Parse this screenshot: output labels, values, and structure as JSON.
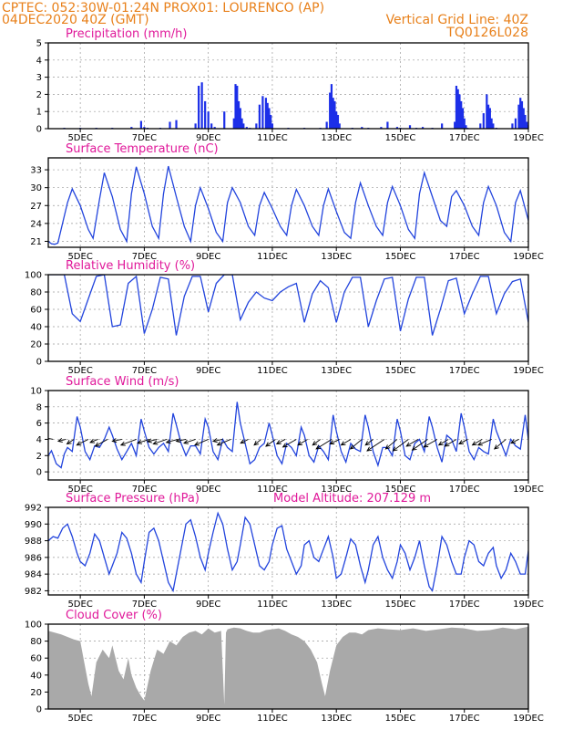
{
  "header": {
    "left_line1": "CPTEC:   052:30W-01:24N   PROX01: LOURENCO (AP)",
    "left_line2": "04DEC2020  40Z  (GMT)",
    "right_line2": "Vertical  Grid  Line: 40Z",
    "right_line3": "TQ0126L028"
  },
  "x_axis": {
    "start_day": 4,
    "end_day": 19,
    "tick_labels": [
      "5DEC",
      "7DEC",
      "9DEC",
      "11DEC",
      "13DEC",
      "15DEC",
      "17DEC",
      "19DEC"
    ],
    "tick_days": [
      5,
      7,
      9,
      11,
      13,
      15,
      17,
      19
    ]
  },
  "colors": {
    "series": "#2244dd",
    "title": "#e0199a",
    "header": "#e8801a",
    "cloud": "#a9a9a9"
  },
  "chart_data": [
    {
      "id": "precip",
      "type": "bar",
      "title": "Precipitation (mm/h)",
      "ylim": [
        0,
        5
      ],
      "yticks": [
        0,
        1,
        2,
        3,
        4,
        5
      ],
      "grid": true,
      "x_unit": "day of December 2020",
      "x": [
        4.0,
        4.5,
        5.0,
        5.5,
        6.0,
        6.6,
        6.9,
        7.0,
        7.1,
        7.5,
        7.8,
        8.0,
        8.6,
        8.7,
        8.8,
        8.9,
        9.0,
        9.1,
        9.2,
        9.5,
        9.8,
        9.85,
        9.9,
        9.95,
        10.0,
        10.05,
        10.1,
        10.2,
        10.3,
        10.5,
        10.6,
        10.7,
        10.8,
        10.85,
        10.9,
        10.95,
        11.0,
        11.5,
        12.0,
        12.5,
        12.7,
        12.8,
        12.85,
        12.9,
        12.95,
        13.0,
        13.05,
        13.1,
        13.5,
        13.8,
        14.0,
        14.4,
        14.6,
        14.9,
        15.0,
        15.3,
        15.5,
        15.7,
        16.0,
        16.3,
        16.7,
        16.75,
        16.8,
        16.85,
        16.9,
        16.95,
        17.0,
        17.05,
        17.1,
        17.5,
        17.6,
        17.7,
        17.75,
        17.8,
        17.85,
        17.9,
        18.0,
        18.5,
        18.6,
        18.7,
        18.75,
        18.8,
        18.85,
        18.9,
        18.95,
        19.0
      ],
      "values": [
        0.0,
        0.05,
        0.05,
        0.05,
        0.05,
        0.1,
        0.45,
        0.1,
        0.05,
        0.05,
        0.4,
        0.5,
        0.3,
        2.5,
        2.7,
        1.6,
        1.0,
        0.3,
        0.1,
        1.0,
        0.6,
        2.6,
        2.5,
        1.6,
        1.2,
        0.6,
        0.3,
        0.1,
        0.05,
        0.3,
        1.4,
        1.9,
        1.8,
        1.5,
        1.2,
        0.8,
        0.3,
        0.05,
        0.05,
        0.05,
        0.4,
        2.1,
        2.6,
        1.8,
        1.6,
        1.0,
        0.8,
        0.3,
        0.05,
        0.1,
        0.05,
        0.1,
        0.4,
        0.1,
        0.05,
        0.2,
        0.05,
        0.1,
        0.05,
        0.3,
        0.4,
        2.5,
        2.3,
        2.0,
        1.6,
        1.2,
        0.6,
        0.2,
        0.05,
        0.3,
        0.9,
        2.0,
        1.4,
        1.2,
        0.6,
        0.3,
        0.05,
        0.3,
        0.6,
        1.4,
        1.8,
        1.6,
        1.2,
        0.8,
        0.4,
        0.2
      ]
    },
    {
      "id": "temperature",
      "type": "line",
      "title": "Surface Temperature (nC)",
      "ylim": [
        20,
        35
      ],
      "yticks": [
        21,
        24,
        27,
        30,
        33
      ],
      "grid": true,
      "x_unit": "day of December 2020",
      "x": [
        4.0,
        4.1,
        4.2,
        4.3,
        4.6,
        4.75,
        5.0,
        5.25,
        5.4,
        5.6,
        5.75,
        6.0,
        6.25,
        6.45,
        6.6,
        6.75,
        7.0,
        7.25,
        7.45,
        7.6,
        7.75,
        8.0,
        8.25,
        8.45,
        8.6,
        8.75,
        9.0,
        9.25,
        9.45,
        9.6,
        9.75,
        10.0,
        10.25,
        10.45,
        10.6,
        10.75,
        11.0,
        11.25,
        11.45,
        11.6,
        11.75,
        12.0,
        12.25,
        12.45,
        12.6,
        12.75,
        13.0,
        13.25,
        13.45,
        13.6,
        13.75,
        14.0,
        14.25,
        14.45,
        14.6,
        14.75,
        15.0,
        15.25,
        15.45,
        15.6,
        15.75,
        16.0,
        16.25,
        16.45,
        16.6,
        16.75,
        17.0,
        17.25,
        17.45,
        17.6,
        17.75,
        18.0,
        18.25,
        18.45,
        18.6,
        18.75,
        19.0
      ],
      "values": [
        21.0,
        20.6,
        20.5,
        20.7,
        27.5,
        29.8,
        27.0,
        23.0,
        21.5,
        28.0,
        32.5,
        28.5,
        23.0,
        21.0,
        29.0,
        33.5,
        29.0,
        23.5,
        21.5,
        29.0,
        33.6,
        28.5,
        23.5,
        21.0,
        27.0,
        30.0,
        26.5,
        22.5,
        21.0,
        27.5,
        30.0,
        27.5,
        23.5,
        22.0,
        27.0,
        29.2,
        26.5,
        23.5,
        22.0,
        27.0,
        29.7,
        27.0,
        23.5,
        22.0,
        27.0,
        29.8,
        26.0,
        22.5,
        21.5,
        27.5,
        30.8,
        27.0,
        23.5,
        22.0,
        27.5,
        30.2,
        27.0,
        23.0,
        21.5,
        29.0,
        32.5,
        28.5,
        24.5,
        23.5,
        28.5,
        29.5,
        27.0,
        23.5,
        22.0,
        27.5,
        30.2,
        27.0,
        22.5,
        21.0,
        27.5,
        29.5,
        24.5
      ]
    },
    {
      "id": "humidity",
      "type": "line",
      "title": "Relative Humidity (%)",
      "ylim": [
        0,
        100
      ],
      "yticks": [
        0,
        20,
        40,
        60,
        80,
        100
      ],
      "grid": true,
      "x_unit": "day of December 2020",
      "x": [
        4.0,
        4.3,
        4.5,
        4.75,
        5.0,
        5.25,
        5.5,
        5.75,
        6.0,
        6.25,
        6.5,
        6.75,
        7.0,
        7.25,
        7.5,
        7.75,
        8.0,
        8.25,
        8.5,
        8.75,
        9.0,
        9.25,
        9.5,
        9.75,
        10.0,
        10.25,
        10.5,
        10.75,
        11.0,
        11.25,
        11.5,
        11.75,
        12.0,
        12.25,
        12.5,
        12.75,
        13.0,
        13.25,
        13.5,
        13.75,
        14.0,
        14.25,
        14.5,
        14.75,
        15.0,
        15.25,
        15.5,
        15.75,
        16.0,
        16.25,
        16.5,
        16.75,
        17.0,
        17.25,
        17.5,
        17.75,
        18.0,
        18.25,
        18.5,
        18.75,
        19.0
      ],
      "values": [
        100,
        100,
        100,
        55,
        46,
        72,
        98,
        100,
        40,
        42,
        90,
        98,
        32,
        60,
        97,
        95,
        30,
        75,
        98,
        98,
        57,
        90,
        100,
        100,
        48,
        68,
        80,
        73,
        70,
        80,
        86,
        90,
        45,
        78,
        93,
        85,
        45,
        80,
        97,
        97,
        40,
        70,
        95,
        97,
        35,
        72,
        97,
        97,
        30,
        60,
        93,
        96,
        55,
        78,
        98,
        98,
        55,
        78,
        92,
        95,
        45
      ]
    },
    {
      "id": "wind",
      "type": "line",
      "title": "Surface Wind (m/s)",
      "ylim": [
        -1,
        10
      ],
      "yticks": [
        0,
        2,
        4,
        6,
        8,
        10
      ],
      "grid": true,
      "x_unit": "day of December 2020",
      "x": [
        4.0,
        4.1,
        4.25,
        4.4,
        4.5,
        4.6,
        4.75,
        4.9,
        5.0,
        5.15,
        5.3,
        5.45,
        5.6,
        5.75,
        5.9,
        6.0,
        6.15,
        6.3,
        6.45,
        6.6,
        6.75,
        6.9,
        7.0,
        7.15,
        7.3,
        7.45,
        7.6,
        7.75,
        7.9,
        8.0,
        8.15,
        8.3,
        8.45,
        8.6,
        8.75,
        8.9,
        9.0,
        9.15,
        9.3,
        9.45,
        9.6,
        9.75,
        9.9,
        10.0,
        10.15,
        10.3,
        10.45,
        10.6,
        10.75,
        10.9,
        11.0,
        11.15,
        11.3,
        11.45,
        11.6,
        11.75,
        11.9,
        12.0,
        12.15,
        12.3,
        12.45,
        12.6,
        12.75,
        12.9,
        13.0,
        13.15,
        13.3,
        13.45,
        13.6,
        13.75,
        13.9,
        14.0,
        14.15,
        14.3,
        14.45,
        14.6,
        14.75,
        14.9,
        15.0,
        15.15,
        15.3,
        15.45,
        15.6,
        15.75,
        15.9,
        16.0,
        16.15,
        16.3,
        16.45,
        16.6,
        16.75,
        16.9,
        17.0,
        17.15,
        17.3,
        17.45,
        17.6,
        17.75,
        17.9,
        18.0,
        18.15,
        18.3,
        18.45,
        18.6,
        18.75,
        18.9,
        19.0
      ],
      "values": [
        2.0,
        2.6,
        1.0,
        0.5,
        2.2,
        3.0,
        2.5,
        6.8,
        5.5,
        2.5,
        1.5,
        3.2,
        3.0,
        4.0,
        5.5,
        4.5,
        2.8,
        1.5,
        2.5,
        3.5,
        2.0,
        6.5,
        5.0,
        3.0,
        2.2,
        3.0,
        3.5,
        2.5,
        7.2,
        5.8,
        3.5,
        2.0,
        3.2,
        3.2,
        2.2,
        6.5,
        5.5,
        2.5,
        1.5,
        4.0,
        3.0,
        2.5,
        8.6,
        6.0,
        3.5,
        1.0,
        1.5,
        3.0,
        3.5,
        6.0,
        4.5,
        2.0,
        1.0,
        3.5,
        3.0,
        2.0,
        5.5,
        4.5,
        2.0,
        1.2,
        3.2,
        2.5,
        1.5,
        7.0,
        5.0,
        2.5,
        1.2,
        3.5,
        2.8,
        2.5,
        7.0,
        5.5,
        2.5,
        0.8,
        3.0,
        3.0,
        2.0,
        6.5,
        5.0,
        2.0,
        1.5,
        3.5,
        4.0,
        2.5,
        6.8,
        5.5,
        3.0,
        1.2,
        4.5,
        4.0,
        2.5,
        7.2,
        5.5,
        2.5,
        1.5,
        3.0,
        2.5,
        2.2,
        6.5,
        5.0,
        3.5,
        2.0,
        4.0,
        3.2,
        2.8,
        7.0,
        4.0
      ],
      "arrows_x": [
        4.15,
        4.55,
        4.8,
        5.25,
        5.55,
        5.85,
        6.3,
        6.75,
        7.15,
        7.4,
        7.7,
        8.05,
        8.3,
        8.6,
        9.0,
        9.45,
        9.7,
        10.25,
        10.65,
        11.1,
        11.4,
        11.75,
        12.1,
        12.5,
        12.85,
        13.1,
        13.45,
        13.8,
        14.15,
        14.5,
        14.9,
        15.25,
        15.55,
        15.85,
        16.15,
        16.5,
        16.75,
        17.1,
        17.55,
        17.85,
        18.3,
        18.7
      ],
      "arrows_u": [
        -2.5,
        -2.0,
        -1.8,
        -3.0,
        -2.0,
        -3.2,
        -2.5,
        -4.0,
        -3.0,
        -2.5,
        -3.5,
        -3.0,
        -2.5,
        -3.0,
        -3.5,
        -2.5,
        -3.5,
        -2.0,
        -1.8,
        -2.5,
        -2.2,
        -3.5,
        -2.5,
        -2.0,
        -4.0,
        -2.5,
        -2.5,
        -3.0,
        -2.0,
        -4.5,
        -3.0,
        -4.0,
        -3.0,
        -4.0,
        -3.5,
        -2.5,
        -3.0,
        -2.2,
        -2.5,
        -3.5,
        -3.0,
        -2.0
      ],
      "arrows_v": [
        0.5,
        -0.5,
        -1.2,
        -1.5,
        -0.8,
        -1.8,
        -0.5,
        -1.5,
        -1.0,
        -0.6,
        -1.2,
        -0.8,
        -0.5,
        -1.0,
        -1.5,
        -0.5,
        -1.5,
        -1.0,
        -1.5,
        -1.8,
        -1.2,
        -2.0,
        -1.5,
        -1.5,
        -2.5,
        -1.2,
        -1.5,
        -2.5,
        -1.5,
        -3.0,
        -2.5,
        -3.0,
        -1.8,
        -2.8,
        -2.0,
        -1.5,
        -1.8,
        -1.2,
        -1.5,
        -1.5,
        -2.5,
        -1.0
      ]
    },
    {
      "id": "pressure",
      "type": "line",
      "title": "Surface Pressure (hPa)",
      "annotation": "Model Altitude: 207.129 m",
      "ylim": [
        981.5,
        992
      ],
      "yticks": [
        982,
        984,
        986,
        988,
        990,
        992
      ],
      "grid": true,
      "x_unit": "day of December 2020",
      "x": [
        4.0,
        4.15,
        4.3,
        4.45,
        4.6,
        4.75,
        4.9,
        5.0,
        5.15,
        5.3,
        5.45,
        5.6,
        5.75,
        5.9,
        6.0,
        6.15,
        6.3,
        6.45,
        6.6,
        6.75,
        6.9,
        7.0,
        7.15,
        7.3,
        7.45,
        7.6,
        7.75,
        7.9,
        8.0,
        8.15,
        8.3,
        8.45,
        8.6,
        8.75,
        8.9,
        9.0,
        9.15,
        9.3,
        9.45,
        9.6,
        9.75,
        9.9,
        10.0,
        10.15,
        10.3,
        10.45,
        10.6,
        10.75,
        10.9,
        11.0,
        11.15,
        11.3,
        11.45,
        11.6,
        11.75,
        11.9,
        12.0,
        12.15,
        12.3,
        12.45,
        12.6,
        12.75,
        12.9,
        13.0,
        13.15,
        13.3,
        13.45,
        13.6,
        13.75,
        13.9,
        14.0,
        14.15,
        14.3,
        14.45,
        14.6,
        14.75,
        14.9,
        15.0,
        15.15,
        15.3,
        15.45,
        15.6,
        15.75,
        15.9,
        16.0,
        16.15,
        16.3,
        16.45,
        16.6,
        16.75,
        16.9,
        17.0,
        17.15,
        17.3,
        17.45,
        17.6,
        17.75,
        17.9,
        18.0,
        18.15,
        18.3,
        18.45,
        18.6,
        18.75,
        18.9,
        19.0
      ],
      "values": [
        988.0,
        988.5,
        988.3,
        989.5,
        990.0,
        988.5,
        986.5,
        985.5,
        985.0,
        986.5,
        988.8,
        988.0,
        986.0,
        984.0,
        985.0,
        986.5,
        989.0,
        988.3,
        986.5,
        984.0,
        983.0,
        985.5,
        989.0,
        989.5,
        988.0,
        985.5,
        983.0,
        982.0,
        984.0,
        987.0,
        990.0,
        990.5,
        988.5,
        986.0,
        984.5,
        986.5,
        989.0,
        991.3,
        990.0,
        987.0,
        984.5,
        985.5,
        987.5,
        990.8,
        990.0,
        987.5,
        985.0,
        984.5,
        985.5,
        987.5,
        989.5,
        989.8,
        987.0,
        985.5,
        984.0,
        985.0,
        987.5,
        988.0,
        986.0,
        985.5,
        987.0,
        988.5,
        986.0,
        983.5,
        984.0,
        986.0,
        988.2,
        987.5,
        985.0,
        983.0,
        984.5,
        987.5,
        988.5,
        986.0,
        984.5,
        983.5,
        985.5,
        987.5,
        986.5,
        984.5,
        986.0,
        988.0,
        985.0,
        982.5,
        982.0,
        985.0,
        988.5,
        987.5,
        985.5,
        984.0,
        984.0,
        986.0,
        988.0,
        987.5,
        985.5,
        985.0,
        986.5,
        987.2,
        985.0,
        983.5,
        984.5,
        986.5,
        985.5,
        984.0,
        984.0,
        986.8
      ]
    },
    {
      "id": "cloud",
      "type": "area",
      "title": "Cloud Cover (%)",
      "ylim": [
        0,
        100
      ],
      "yticks": [
        0,
        20,
        40,
        60,
        80,
        100
      ],
      "grid": true,
      "x_unit": "day of December 2020",
      "x": [
        4.0,
        4.2,
        4.4,
        4.6,
        4.8,
        5.0,
        5.1,
        5.25,
        5.35,
        5.5,
        5.7,
        5.9,
        6.0,
        6.2,
        6.35,
        6.5,
        6.6,
        6.75,
        6.9,
        7.0,
        7.2,
        7.4,
        7.6,
        7.8,
        8.0,
        8.2,
        8.4,
        8.6,
        8.8,
        9.0,
        9.2,
        9.4,
        9.5,
        9.55,
        9.6,
        9.8,
        10.0,
        10.2,
        10.4,
        10.6,
        10.8,
        11.0,
        11.2,
        11.4,
        11.6,
        11.8,
        12.0,
        12.2,
        12.4,
        12.55,
        12.65,
        12.8,
        13.0,
        13.2,
        13.4,
        13.6,
        13.8,
        14.0,
        14.3,
        14.6,
        15.0,
        15.4,
        15.8,
        16.2,
        16.6,
        17.0,
        17.4,
        17.8,
        18.2,
        18.6,
        19.0
      ],
      "values": [
        92,
        90,
        88,
        85,
        82,
        80,
        60,
        30,
        15,
        55,
        70,
        60,
        75,
        45,
        35,
        60,
        40,
        25,
        15,
        10,
        45,
        70,
        65,
        80,
        75,
        85,
        90,
        92,
        88,
        95,
        90,
        92,
        5,
        90,
        94,
        96,
        95,
        92,
        90,
        90,
        93,
        94,
        95,
        92,
        88,
        85,
        80,
        70,
        55,
        30,
        15,
        45,
        75,
        85,
        90,
        90,
        88,
        93,
        95,
        94,
        93,
        95,
        92,
        94,
        96,
        95,
        92,
        93,
        96,
        94,
        97
      ]
    }
  ]
}
